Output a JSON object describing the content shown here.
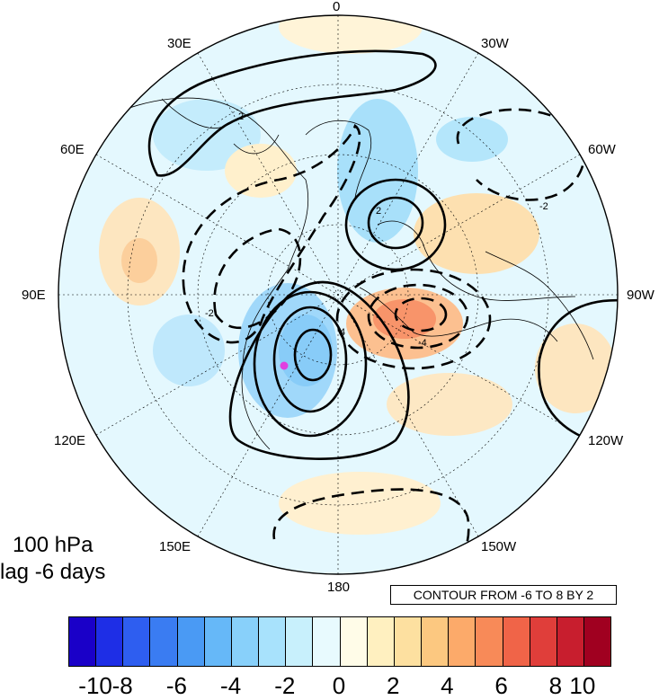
{
  "map": {
    "level_label": "100 hPa",
    "lag_label": "lag -6 days",
    "contour_info": "CONTOUR FROM -6 TO 8 BY 2",
    "longitude_labels": {
      "lon_0": "0",
      "lon_30e": "30E",
      "lon_30w": "30W",
      "lon_60e": "60E",
      "lon_60w": "60W",
      "lon_90e": "90E",
      "lon_90w": "90W",
      "lon_120e": "120E",
      "lon_120w": "120W",
      "lon_150e": "150E",
      "lon_150w": "150W",
      "lon_180": "180"
    },
    "contour_labels": [
      "2",
      "-2",
      "-2",
      "-4",
      "4",
      "2"
    ],
    "marker_color": "#e040e0"
  },
  "colorbar": {
    "colors": [
      "#1a00c8",
      "#1e2ee6",
      "#2e5ef0",
      "#3a7cf2",
      "#4a9af4",
      "#66b8f8",
      "#88d0fa",
      "#a8e2fc",
      "#c8f0fc",
      "#e8fafe",
      "#fffce8",
      "#fff0c0",
      "#fde0a0",
      "#fcc880",
      "#fcaa6a",
      "#f88a58",
      "#f06448",
      "#e03e3a",
      "#c81e2e",
      "#a00020"
    ],
    "tick_labels": [
      "-10",
      "-8",
      "-6",
      "-4",
      "-2",
      "0",
      "2",
      "4",
      "6",
      "8",
      "10"
    ]
  }
}
